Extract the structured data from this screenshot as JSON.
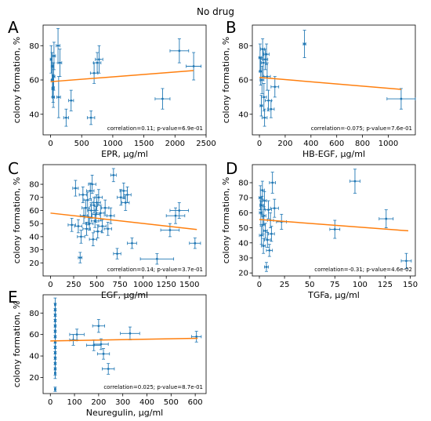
{
  "figure": {
    "title": "No drug"
  },
  "chart_data": [
    {
      "type": "scatter",
      "panel": "A",
      "xlabel": "EPR, μg/ml",
      "ylabel": "colony formation, %",
      "xlim": [
        -120,
        2500
      ],
      "ylim": [
        28,
        92
      ],
      "xticks": [
        0,
        500,
        1000,
        1500,
        2000,
        2500
      ],
      "yticks": [
        40,
        60,
        80
      ],
      "annotation": "correlation=0.11; p-value=6.9e-01",
      "points": [
        {
          "x": 10,
          "y": 72,
          "xerr": 15,
          "yerr": 8
        },
        {
          "x": 25,
          "y": 68,
          "xerr": 15,
          "yerr": 8
        },
        {
          "x": 30,
          "y": 60,
          "xerr": 20,
          "yerr": 10
        },
        {
          "x": 40,
          "y": 55,
          "xerr": 20,
          "yerr": 8
        },
        {
          "x": 45,
          "y": 50,
          "xerr": 20,
          "yerr": 6
        },
        {
          "x": 50,
          "y": 62,
          "xerr": 20,
          "yerr": 8
        },
        {
          "x": 55,
          "y": 74,
          "xerr": 25,
          "yerr": 8
        },
        {
          "x": 120,
          "y": 80,
          "xerr": 30,
          "yerr": 10
        },
        {
          "x": 130,
          "y": 50,
          "xerr": 30,
          "yerr": 12
        },
        {
          "x": 150,
          "y": 70,
          "xerr": 30,
          "yerr": 8
        },
        {
          "x": 250,
          "y": 38,
          "xerr": 40,
          "yerr": 5
        },
        {
          "x": 330,
          "y": 48,
          "xerr": 40,
          "yerr": 6
        },
        {
          "x": 650,
          "y": 38,
          "xerr": 60,
          "yerr": 4
        },
        {
          "x": 700,
          "y": 64,
          "xerr": 60,
          "yerr": 6
        },
        {
          "x": 750,
          "y": 70,
          "xerr": 60,
          "yerr": 6
        },
        {
          "x": 780,
          "y": 72,
          "xerr": 60,
          "yerr": 8
        },
        {
          "x": 1800,
          "y": 49,
          "xerr": 120,
          "yerr": 6
        },
        {
          "x": 2070,
          "y": 77,
          "xerr": 150,
          "yerr": 7
        },
        {
          "x": 2300,
          "y": 68,
          "xerr": 120,
          "yerr": 8
        }
      ],
      "fit": {
        "x": [
          0,
          2300
        ],
        "y": [
          59,
          65.5
        ]
      }
    },
    {
      "type": "scatter",
      "panel": "B",
      "xlabel": "HB-EGF, μg/ml",
      "ylabel": "colony formation, %",
      "xlim": [
        -55,
        1210
      ],
      "ylim": [
        28,
        92
      ],
      "xticks": [
        0,
        200,
        400,
        600,
        800,
        1000
      ],
      "yticks": [
        40,
        60,
        80
      ],
      "annotation": "correlation=-0.075; p-value=7.6e-01",
      "points": [
        {
          "x": 5,
          "y": 73,
          "xerr": 10,
          "yerr": 8
        },
        {
          "x": 10,
          "y": 65,
          "xerr": 10,
          "yerr": 8
        },
        {
          "x": 15,
          "y": 45,
          "xerr": 10,
          "yerr": 6
        },
        {
          "x": 20,
          "y": 60,
          "xerr": 15,
          "yerr": 8
        },
        {
          "x": 25,
          "y": 78,
          "xerr": 15,
          "yerr": 6
        },
        {
          "x": 30,
          "y": 70,
          "xerr": 15,
          "yerr": 8
        },
        {
          "x": 35,
          "y": 50,
          "xerr": 20,
          "yerr": 8
        },
        {
          "x": 40,
          "y": 38,
          "xerr": 20,
          "yerr": 5
        },
        {
          "x": 45,
          "y": 72,
          "xerr": 20,
          "yerr": 6
        },
        {
          "x": 55,
          "y": 75,
          "xerr": 20,
          "yerr": 6
        },
        {
          "x": 60,
          "y": 62,
          "xerr": 25,
          "yerr": 8
        },
        {
          "x": 70,
          "y": 48,
          "xerr": 25,
          "yerr": 6
        },
        {
          "x": 90,
          "y": 43,
          "xerr": 25,
          "yerr": 5
        },
        {
          "x": 120,
          "y": 56,
          "xerr": 30,
          "yerr": 6
        },
        {
          "x": 350,
          "y": 81,
          "xerr": 10,
          "yerr": 8
        },
        {
          "x": 1100,
          "y": 49,
          "xerr": 110,
          "yerr": 6
        }
      ],
      "fit": {
        "x": [
          0,
          1100
        ],
        "y": [
          61.5,
          54.5
        ]
      }
    },
    {
      "type": "scatter",
      "panel": "C",
      "xlabel": "EGF, μg/ml",
      "ylabel": "colony formation, %",
      "xlim": [
        -80,
        1680
      ],
      "ylim": [
        10,
        95
      ],
      "xticks": [
        0,
        250,
        500,
        750,
        1000,
        1250,
        1500
      ],
      "yticks": [
        20,
        30,
        40,
        50,
        60,
        70,
        80
      ],
      "annotation": "correlation=0.14; p-value=3.7e-01",
      "points": [
        {
          "x": 230,
          "y": 49,
          "xerr": 40,
          "yerr": 5
        },
        {
          "x": 270,
          "y": 77,
          "xerr": 30,
          "yerr": 6
        },
        {
          "x": 300,
          "y": 48,
          "xerr": 40,
          "yerr": 5
        },
        {
          "x": 320,
          "y": 24,
          "xerr": 20,
          "yerr": 4
        },
        {
          "x": 330,
          "y": 40,
          "xerr": 40,
          "yerr": 5
        },
        {
          "x": 350,
          "y": 72,
          "xerr": 40,
          "yerr": 6
        },
        {
          "x": 360,
          "y": 56,
          "xerr": 40,
          "yerr": 6
        },
        {
          "x": 380,
          "y": 62,
          "xerr": 40,
          "yerr": 6
        },
        {
          "x": 390,
          "y": 46,
          "xerr": 40,
          "yerr": 5
        },
        {
          "x": 400,
          "y": 68,
          "xerr": 40,
          "yerr": 6
        },
        {
          "x": 410,
          "y": 55,
          "xerr": 40,
          "yerr": 6
        },
        {
          "x": 420,
          "y": 50,
          "xerr": 40,
          "yerr": 5
        },
        {
          "x": 430,
          "y": 75,
          "xerr": 40,
          "yerr": 6
        },
        {
          "x": 440,
          "y": 60,
          "xerr": 40,
          "yerr": 6
        },
        {
          "x": 450,
          "y": 80,
          "xerr": 40,
          "yerr": 7
        },
        {
          "x": 460,
          "y": 38,
          "xerr": 40,
          "yerr": 5
        },
        {
          "x": 470,
          "y": 64,
          "xerr": 40,
          "yerr": 6
        },
        {
          "x": 480,
          "y": 52,
          "xerr": 40,
          "yerr": 5
        },
        {
          "x": 490,
          "y": 57,
          "xerr": 40,
          "yerr": 6
        },
        {
          "x": 500,
          "y": 66,
          "xerr": 40,
          "yerr": 6
        },
        {
          "x": 510,
          "y": 44,
          "xerr": 40,
          "yerr": 5
        },
        {
          "x": 520,
          "y": 70,
          "xerr": 40,
          "yerr": 6
        },
        {
          "x": 540,
          "y": 58,
          "xerr": 40,
          "yerr": 6
        },
        {
          "x": 560,
          "y": 48,
          "xerr": 40,
          "yerr": 5
        },
        {
          "x": 590,
          "y": 62,
          "xerr": 40,
          "yerr": 6
        },
        {
          "x": 620,
          "y": 46,
          "xerr": 40,
          "yerr": 5
        },
        {
          "x": 650,
          "y": 56,
          "xerr": 40,
          "yerr": 6
        },
        {
          "x": 680,
          "y": 87,
          "xerr": 30,
          "yerr": 5
        },
        {
          "x": 720,
          "y": 27,
          "xerr": 40,
          "yerr": 4
        },
        {
          "x": 760,
          "y": 70,
          "xerr": 40,
          "yerr": 6
        },
        {
          "x": 790,
          "y": 75,
          "xerr": 40,
          "yerr": 6
        },
        {
          "x": 810,
          "y": 66,
          "xerr": 40,
          "yerr": 6
        },
        {
          "x": 830,
          "y": 72,
          "xerr": 40,
          "yerr": 6
        },
        {
          "x": 880,
          "y": 35,
          "xerr": 50,
          "yerr": 4
        },
        {
          "x": 1150,
          "y": 23,
          "xerr": 180,
          "yerr": 4
        },
        {
          "x": 1290,
          "y": 45,
          "xerr": 100,
          "yerr": 5
        },
        {
          "x": 1350,
          "y": 56,
          "xerr": 100,
          "yerr": 6
        },
        {
          "x": 1390,
          "y": 60,
          "xerr": 100,
          "yerr": 6
        },
        {
          "x": 1560,
          "y": 35,
          "xerr": 60,
          "yerr": 4
        }
      ],
      "fit": {
        "x": [
          0,
          1580
        ],
        "y": [
          58,
          45.5
        ]
      }
    },
    {
      "type": "scatter",
      "panel": "D",
      "xlabel": "TGFa, μg/ml",
      "ylabel": "colony formation, %",
      "xlim": [
        -7,
        155
      ],
      "ylim": [
        18,
        92
      ],
      "xticks": [
        0,
        25,
        50,
        75,
        100,
        125,
        150
      ],
      "yticks": [
        20,
        30,
        40,
        50,
        60,
        70,
        80
      ],
      "annotation": "correlation=-0.31; p-value=4.6e-02",
      "points": [
        {
          "x": 1,
          "y": 70,
          "xerr": 1.5,
          "yerr": 8
        },
        {
          "x": 1.5,
          "y": 60,
          "xerr": 1.5,
          "yerr": 8
        },
        {
          "x": 2,
          "y": 45,
          "xerr": 2,
          "yerr": 6
        },
        {
          "x": 2.5,
          "y": 65,
          "xerr": 2,
          "yerr": 6
        },
        {
          "x": 3,
          "y": 75,
          "xerr": 2,
          "yerr": 6
        },
        {
          "x": 3.5,
          "y": 52,
          "xerr": 2,
          "yerr": 6
        },
        {
          "x": 4,
          "y": 38,
          "xerr": 2,
          "yerr": 5
        },
        {
          "x": 4.5,
          "y": 58,
          "xerr": 2,
          "yerr": 6
        },
        {
          "x": 5,
          "y": 68,
          "xerr": 2,
          "yerr": 6
        },
        {
          "x": 6,
          "y": 48,
          "xerr": 2,
          "yerr": 5
        },
        {
          "x": 7,
          "y": 24,
          "xerr": 2,
          "yerr": 3
        },
        {
          "x": 8,
          "y": 42,
          "xerr": 3,
          "yerr": 5
        },
        {
          "x": 9,
          "y": 62,
          "xerr": 3,
          "yerr": 6
        },
        {
          "x": 10,
          "y": 35,
          "xerr": 3,
          "yerr": 4
        },
        {
          "x": 11,
          "y": 55,
          "xerr": 3,
          "yerr": 5
        },
        {
          "x": 12,
          "y": 46,
          "xerr": 3,
          "yerr": 5
        },
        {
          "x": 13,
          "y": 80,
          "xerr": 3,
          "yerr": 7
        },
        {
          "x": 15,
          "y": 63,
          "xerr": 4,
          "yerr": 6
        },
        {
          "x": 22,
          "y": 54,
          "xerr": 5,
          "yerr": 5
        },
        {
          "x": 75,
          "y": 49,
          "xerr": 5,
          "yerr": 6
        },
        {
          "x": 95,
          "y": 81,
          "xerr": 5,
          "yerr": 8
        },
        {
          "x": 126,
          "y": 56,
          "xerr": 7,
          "yerr": 6
        },
        {
          "x": 146,
          "y": 28,
          "xerr": 5,
          "yerr": 5
        }
      ],
      "fit": {
        "x": [
          0,
          148
        ],
        "y": [
          55.5,
          48
        ]
      }
    },
    {
      "type": "scatter",
      "panel": "E",
      "xlabel": "Neuregulin, μg/ml",
      "ylabel": "colony formation, %",
      "xlim": [
        -30,
        645
      ],
      "ylim": [
        5,
        97
      ],
      "xticks": [
        0,
        100,
        200,
        300,
        400,
        500,
        600
      ],
      "yticks": [
        20,
        40,
        60,
        80
      ],
      "annotation": "correlation=0.025; p-value=8.7e-01",
      "points": [
        {
          "x": 20,
          "y": 88,
          "xerr": 3,
          "yerr": 6
        },
        {
          "x": 20,
          "y": 83,
          "xerr": 3,
          "yerr": 6
        },
        {
          "x": 20,
          "y": 78,
          "xerr": 3,
          "yerr": 6
        },
        {
          "x": 20,
          "y": 73,
          "xerr": 3,
          "yerr": 6
        },
        {
          "x": 20,
          "y": 68,
          "xerr": 3,
          "yerr": 6
        },
        {
          "x": 20,
          "y": 63,
          "xerr": 3,
          "yerr": 6
        },
        {
          "x": 20,
          "y": 58,
          "xerr": 3,
          "yerr": 6
        },
        {
          "x": 20,
          "y": 53,
          "xerr": 3,
          "yerr": 6
        },
        {
          "x": 20,
          "y": 48,
          "xerr": 3,
          "yerr": 6
        },
        {
          "x": 20,
          "y": 43,
          "xerr": 3,
          "yerr": 6
        },
        {
          "x": 20,
          "y": 38,
          "xerr": 3,
          "yerr": 6
        },
        {
          "x": 20,
          "y": 33,
          "xerr": 3,
          "yerr": 6
        },
        {
          "x": 20,
          "y": 28,
          "xerr": 3,
          "yerr": 6
        },
        {
          "x": 20,
          "y": 24,
          "xerr": 3,
          "yerr": 5
        },
        {
          "x": 20,
          "y": 9,
          "xerr": 3,
          "yerr": 2
        },
        {
          "x": 95,
          "y": 55,
          "xerr": 15,
          "yerr": 5
        },
        {
          "x": 110,
          "y": 60,
          "xerr": 30,
          "yerr": 5
        },
        {
          "x": 180,
          "y": 50,
          "xerr": 30,
          "yerr": 5
        },
        {
          "x": 200,
          "y": 68,
          "xerr": 25,
          "yerr": 6
        },
        {
          "x": 210,
          "y": 51,
          "xerr": 30,
          "yerr": 5
        },
        {
          "x": 220,
          "y": 42,
          "xerr": 25,
          "yerr": 5
        },
        {
          "x": 240,
          "y": 28,
          "xerr": 25,
          "yerr": 5
        },
        {
          "x": 330,
          "y": 61,
          "xerr": 40,
          "yerr": 6
        },
        {
          "x": 605,
          "y": 58,
          "xerr": 20,
          "yerr": 5
        }
      ],
      "fit": {
        "x": [
          0,
          610
        ],
        "y": [
          54,
          56.5
        ]
      }
    }
  ],
  "colors": {
    "points": "#1f77b4",
    "fit": "#ff7f0e",
    "axes": "#000000"
  }
}
